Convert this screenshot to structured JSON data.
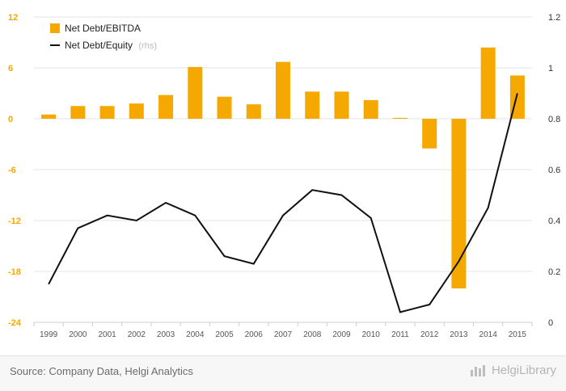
{
  "chart_data": {
    "type": "bar",
    "categories": [
      "1999",
      "2000",
      "2001",
      "2002",
      "2003",
      "2004",
      "2005",
      "2006",
      "2007",
      "2008",
      "2009",
      "2010",
      "2011",
      "2012",
      "2013",
      "2014",
      "2015"
    ],
    "series": [
      {
        "name": "Net Debt/EBITDA",
        "type": "bar",
        "axis": "left",
        "color": "#f5a800",
        "values": [
          0.5,
          1.5,
          1.5,
          1.8,
          2.8,
          6.1,
          2.6,
          1.7,
          6.7,
          3.2,
          3.2,
          2.2,
          0.1,
          -3.5,
          -20.0,
          8.4,
          5.1
        ]
      },
      {
        "name": "Net Debt/Equity",
        "type": "line",
        "axis": "right",
        "color": "#111111",
        "values": [
          0.15,
          0.37,
          0.42,
          0.4,
          0.47,
          0.42,
          0.26,
          0.23,
          0.42,
          0.52,
          0.5,
          0.41,
          0.04,
          0.07,
          0.24,
          0.45,
          0.9
        ]
      }
    ],
    "y_left": {
      "ylim": [
        -24,
        12
      ],
      "ticks": [
        12,
        6,
        0,
        -6,
        -12,
        -18,
        -24
      ],
      "color": "#f5a800"
    },
    "y_right": {
      "ylim": [
        0,
        1.2
      ],
      "ticks": [
        1.2,
        1,
        0.8,
        0.6,
        0.4,
        0.2,
        0
      ]
    },
    "legend": {
      "placement": "top-left",
      "rhs_note": "(rhs)"
    }
  },
  "footer": {
    "source": "Source: Company Data, Helgi Analytics",
    "logo": "HelgiLibrary"
  }
}
